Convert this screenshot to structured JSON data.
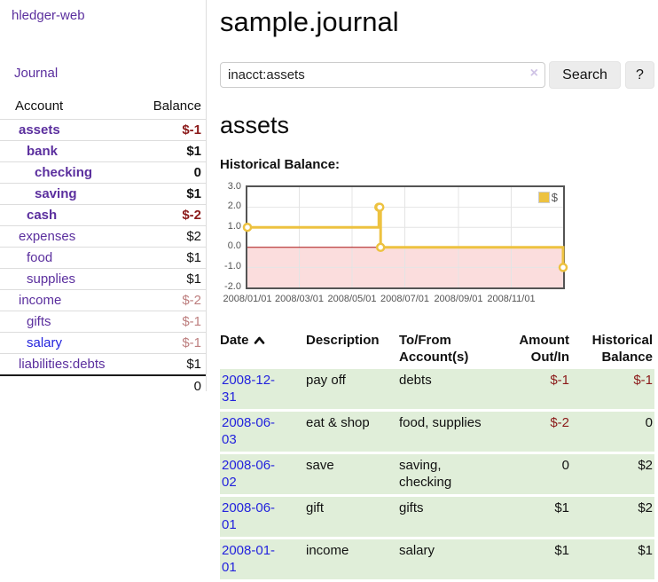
{
  "sidebar": {
    "brand": "hledger-web",
    "journal_link": "Journal",
    "accounts": {
      "header": {
        "account": "Account",
        "balance": "Balance"
      },
      "rows": [
        {
          "name": "assets",
          "balance": "$-1",
          "depth": 1,
          "emphasis": true,
          "balance_tone": "negative"
        },
        {
          "name": "bank",
          "balance": "$1",
          "depth": 2,
          "emphasis": true,
          "balance_tone": "plain"
        },
        {
          "name": "checking",
          "balance": "0",
          "depth": 3,
          "emphasis": true,
          "balance_tone": "plain"
        },
        {
          "name": "saving",
          "balance": "$1",
          "depth": 3,
          "emphasis": true,
          "balance_tone": "plain"
        },
        {
          "name": "cash",
          "balance": "$-2",
          "depth": 2,
          "emphasis": true,
          "balance_tone": "negative"
        },
        {
          "name": "expenses",
          "balance": "$2",
          "depth": 1,
          "emphasis": false,
          "balance_tone": "plain"
        },
        {
          "name": "food",
          "balance": "$1",
          "depth": 2,
          "emphasis": false,
          "balance_tone": "plain"
        },
        {
          "name": "supplies",
          "balance": "$1",
          "depth": 2,
          "emphasis": false,
          "balance_tone": "plain"
        },
        {
          "name": "income",
          "balance": "$-2",
          "depth": 1,
          "emphasis": false,
          "balance_tone": "muted-negative"
        },
        {
          "name": "gifts",
          "balance": "$-1",
          "depth": 2,
          "emphasis": false,
          "balance_tone": "muted-negative"
        },
        {
          "name": "salary",
          "balance": "$-1",
          "depth": 2,
          "emphasis": false,
          "balance_tone": "muted-negative"
        },
        {
          "name": "liabilities:debts",
          "balance": "$1",
          "depth": 1,
          "emphasis": false,
          "balance_tone": "plain"
        }
      ],
      "total": "0"
    }
  },
  "main": {
    "title": "sample.journal",
    "search": {
      "value": "inacct:assets",
      "clear_icon": "×",
      "search_button": "Search",
      "help_button": "?"
    },
    "account_heading": "assets",
    "chart_title": "Historical Balance:"
  },
  "register": {
    "headers": {
      "date": "Date",
      "description": "Description",
      "accounts": "To/From Account(s)",
      "amount": "Amount Out/In",
      "balance": "Historical Balance"
    },
    "rows": [
      {
        "date": "2008-12-31",
        "description": "pay off",
        "accounts": "debts",
        "amount": "$-1",
        "balance": "$-1"
      },
      {
        "date": "2008-06-03",
        "description": "eat & shop",
        "accounts": "food, supplies",
        "amount": "$-2",
        "balance": "0"
      },
      {
        "date": "2008-06-02",
        "description": "save",
        "accounts": "saving, checking",
        "amount": "0",
        "balance": "$2"
      },
      {
        "date": "2008-06-01",
        "description": "gift",
        "accounts": "gifts",
        "amount": "$1",
        "balance": "$2"
      },
      {
        "date": "2008-01-01",
        "description": "income",
        "accounts": "salary",
        "amount": "$1",
        "balance": "$1"
      }
    ]
  },
  "chart_data": {
    "type": "line",
    "title": "Historical Balance:",
    "legend": {
      "label": "$",
      "position": "top-right"
    },
    "series": [
      {
        "name": "$",
        "color": "#edc240",
        "points": [
          [
            "2008-01-01",
            1
          ],
          [
            "2008-06-01",
            2
          ],
          [
            "2008-06-02",
            2
          ],
          [
            "2008-06-03",
            0
          ],
          [
            "2008-12-31",
            -1
          ]
        ]
      }
    ],
    "x_ticks": [
      {
        "date": "2008-01-01",
        "label": "2008/01/01"
      },
      {
        "date": "2008-03-01",
        "label": "2008/03/01"
      },
      {
        "date": "2008-05-01",
        "label": "2008/05/01"
      },
      {
        "date": "2008-07-01",
        "label": "2008/07/01"
      },
      {
        "date": "2008-09-01",
        "label": "2008/09/01"
      },
      {
        "date": "2008-11-01",
        "label": "2008/11/01"
      }
    ],
    "y_ticks": [
      {
        "value": 3,
        "label": "3.0"
      },
      {
        "value": 2,
        "label": "2.0"
      },
      {
        "value": 1,
        "label": "1.0"
      },
      {
        "value": 0,
        "label": "0.0"
      },
      {
        "value": -1,
        "label": "-1.0"
      },
      {
        "value": -2,
        "label": "-2.0"
      }
    ],
    "xlim": [
      "2008-01-01",
      "2008-12-31"
    ],
    "ylim": [
      -2,
      3
    ],
    "grid": true,
    "colors": {
      "line": "#edc240",
      "marker_fill": "#ffffff",
      "negative_region": "#fbdddd",
      "zero_line": "#aa1111",
      "grid": "#e4e4e4",
      "border": "#545454",
      "tick_text": "#545454"
    }
  },
  "colors": {
    "link_purple": "#5b2f9e",
    "link_blue": "#2323dd",
    "negative": "#8b1a1a",
    "muted_negative": "#bd7e7e",
    "row_highlight_green": "#e0eed9"
  }
}
